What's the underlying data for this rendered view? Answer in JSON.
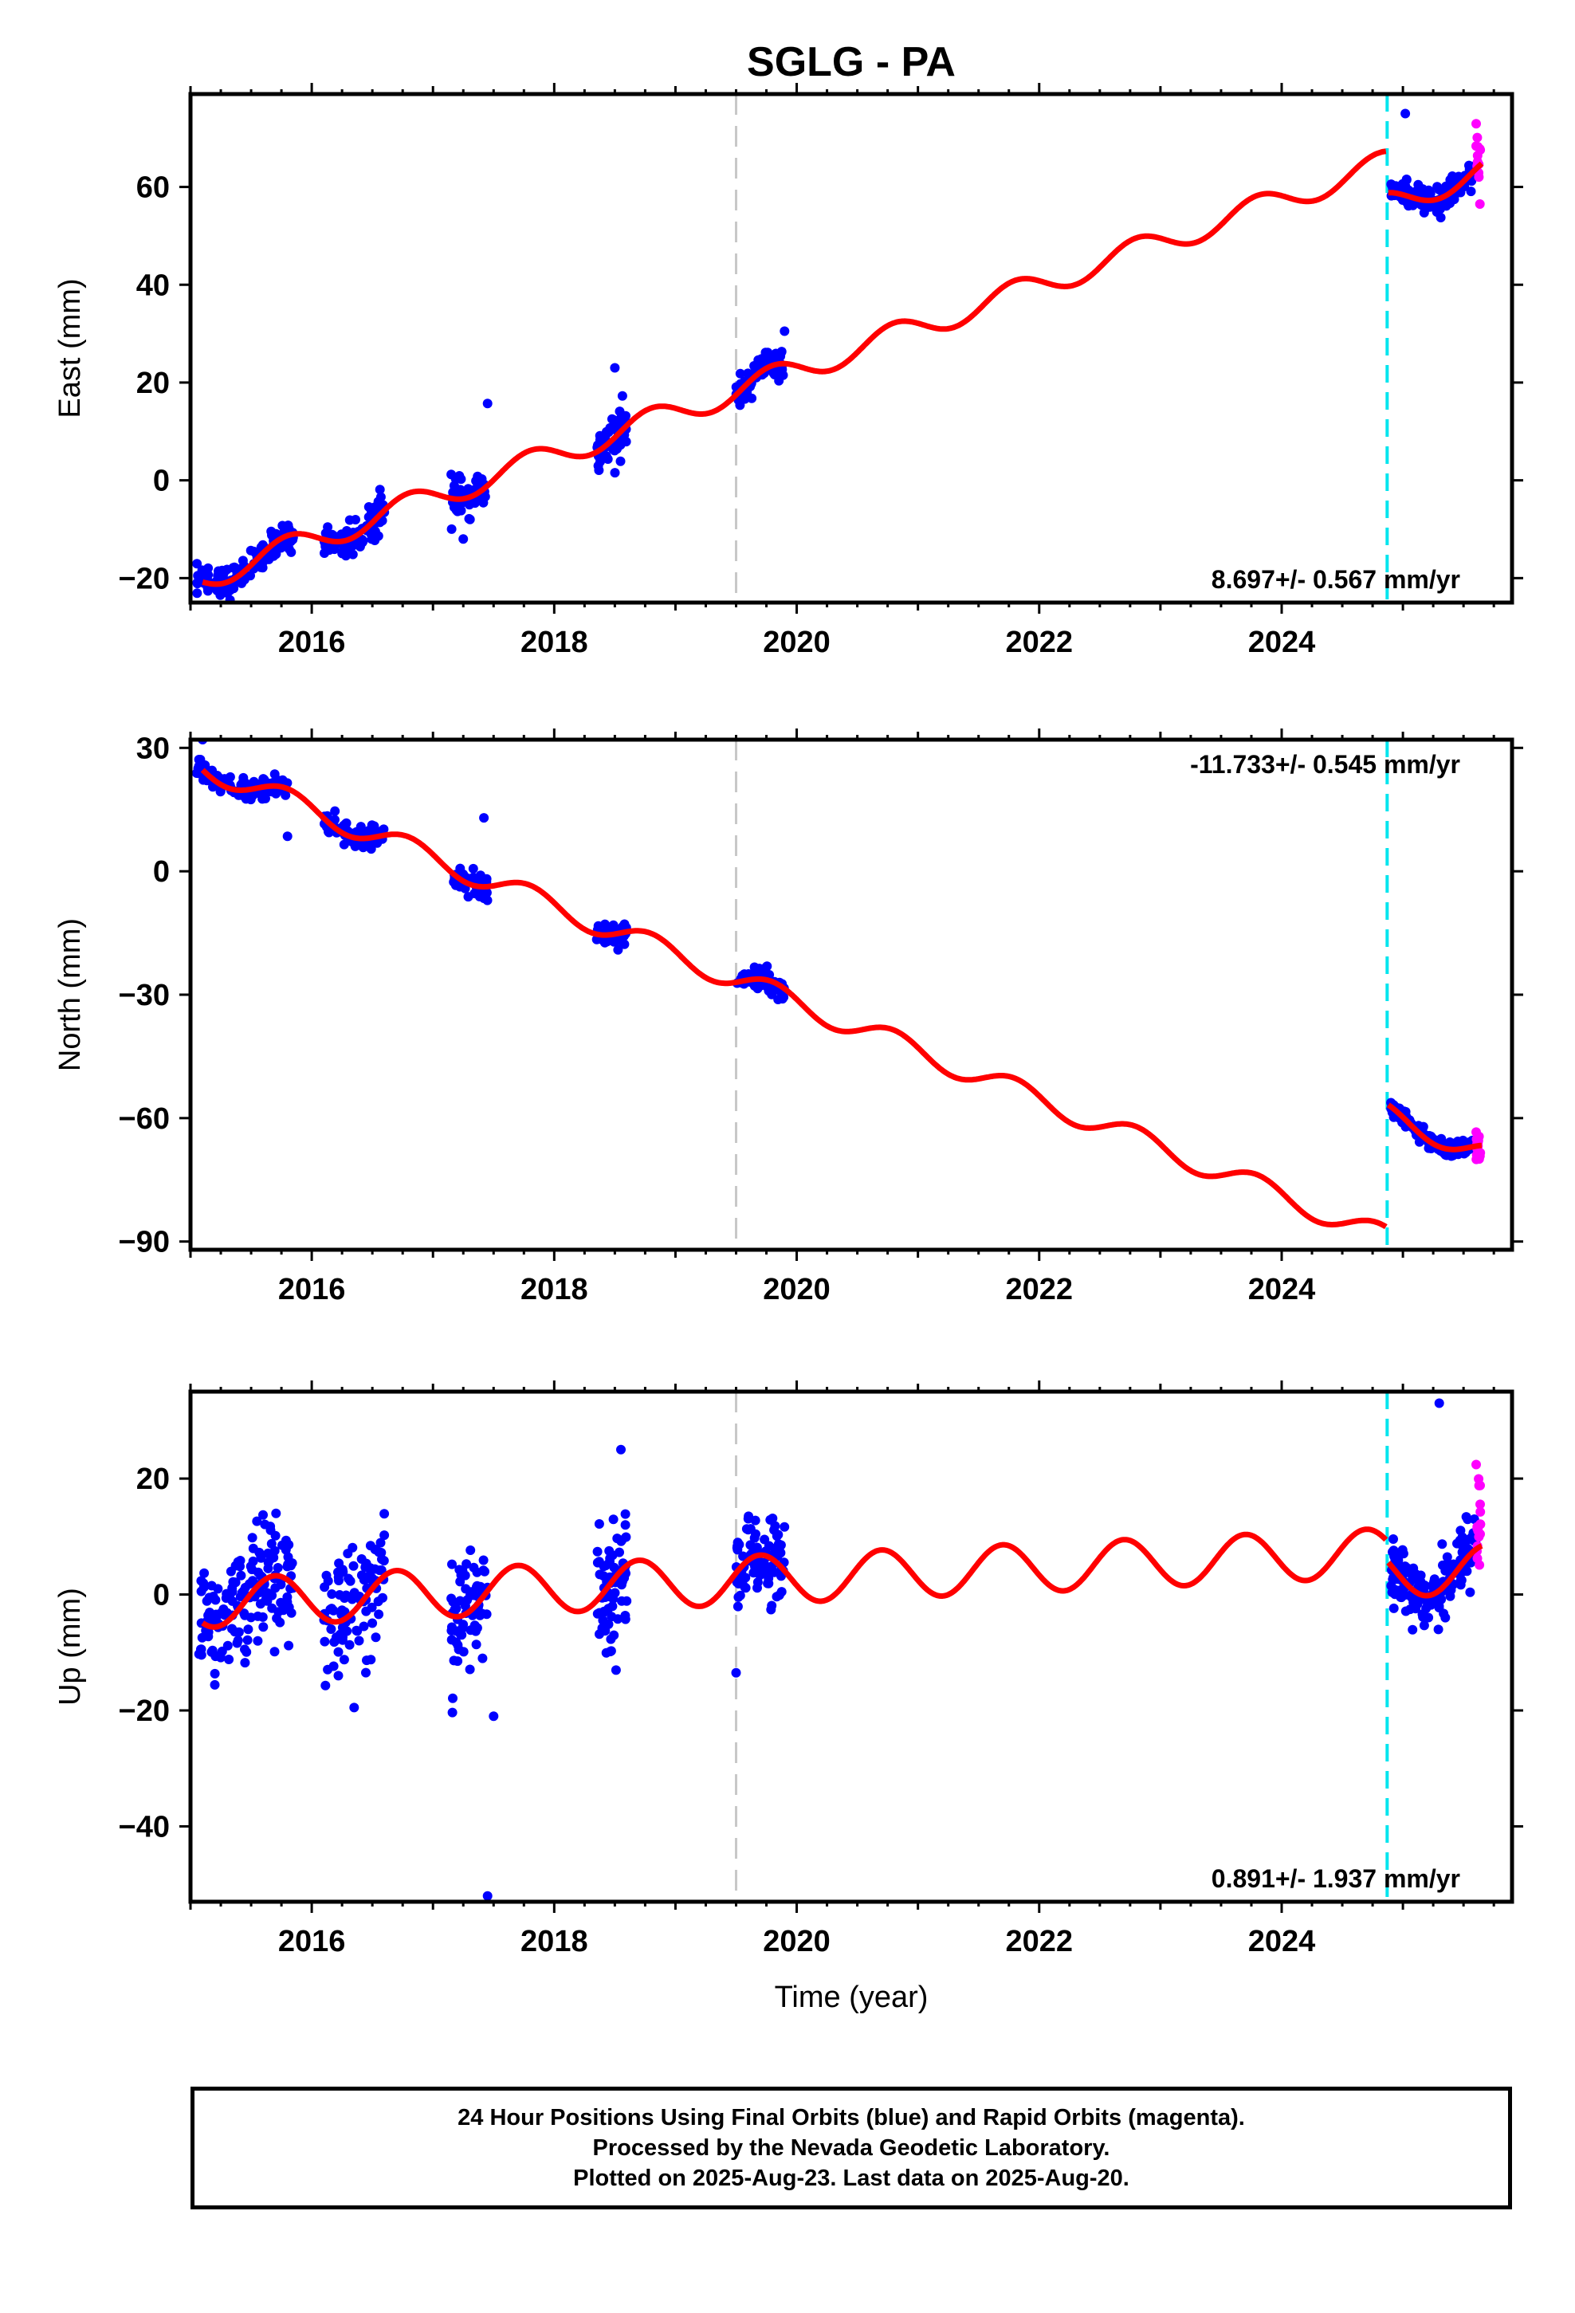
{
  "title": "SGLG - PA",
  "xlabel": "Time (year)",
  "colors": {
    "final": "#0000ff",
    "rapid": "#ff00ff",
    "model": "#ff0000",
    "gray_line": "#c8c8c8",
    "cyan_line": "#00e5ee"
  },
  "chart_data": [
    {
      "type": "scatter",
      "panel": "east",
      "ylabel": "East (mm)",
      "xlim": [
        2015.0,
        2025.9
      ],
      "ylim": [
        -25,
        79
      ],
      "x_ticks": [
        2016,
        2018,
        2020,
        2022,
        2024
      ],
      "y_ticks": [
        -20,
        0,
        20,
        40,
        60
      ],
      "y_tick_labels": [
        "−20",
        "0",
        "20",
        "40",
        "60"
      ],
      "rate_label": "8.697+/- 0.567 mm/yr",
      "rate_label_position": "bottom-right",
      "vertical_lines": [
        {
          "x": 2019.5,
          "style": "gray-dashed"
        },
        {
          "x": 2024.87,
          "style": "cyan-dashed"
        }
      ],
      "model": {
        "x0": 2015.1,
        "y0": -20,
        "rate": 8.697,
        "amplitude": 2.6,
        "phase_year": 2015.55,
        "segments": [
          {
            "from": 2015.1,
            "to": 2024.86,
            "offset": 0
          },
          {
            "from": 2024.88,
            "to": 2025.65,
            "offset": -8.5
          }
        ]
      },
      "series": [
        {
          "name": "Final Orbits",
          "color": "blue",
          "clusters": [
            {
              "from": 2015.05,
              "to": 2015.85,
              "spread": 1.6,
              "n": 130
            },
            {
              "from": 2016.1,
              "to": 2016.6,
              "spread": 1.8,
              "n": 90
            },
            {
              "from": 2017.15,
              "to": 2017.45,
              "spread": 1.8,
              "n": 60
            },
            {
              "from": 2018.35,
              "to": 2018.6,
              "spread": 2.5,
              "n": 60
            },
            {
              "from": 2019.5,
              "to": 2019.9,
              "spread": 1.6,
              "n": 70
            },
            {
              "from": 2024.9,
              "to": 2025.6,
              "spread": 1.4,
              "n": 140
            }
          ],
          "outliers": [
            [
              2017.45,
              15.7
            ],
            [
              2017.25,
              -12
            ],
            [
              2018.5,
              23
            ],
            [
              2019.9,
              30.5
            ],
            [
              2025.02,
              75
            ],
            [
              2025.0,
              60
            ]
          ]
        },
        {
          "name": "Rapid Orbits",
          "color": "magenta",
          "clusters": [
            {
              "from": 2025.6,
              "to": 2025.64,
              "spread": 3.0,
              "n": 14
            }
          ]
        }
      ]
    },
    {
      "type": "scatter",
      "panel": "north",
      "ylabel": "North (mm)",
      "xlim": [
        2015.0,
        2025.9
      ],
      "ylim": [
        -92,
        32
      ],
      "x_ticks": [
        2016,
        2018,
        2020,
        2022,
        2024
      ],
      "y_ticks": [
        -90,
        -60,
        -30,
        0,
        30
      ],
      "y_tick_labels": [
        "−90",
        "−60",
        "−30",
        "0",
        "30"
      ],
      "rate_label": "-11.733+/- 0.545 mm/yr",
      "rate_label_position": "top-right",
      "vertical_lines": [
        {
          "x": 2019.5,
          "style": "gray-dashed"
        },
        {
          "x": 2024.87,
          "style": "cyan-dashed"
        }
      ],
      "model": {
        "x0": 2015.1,
        "y0": 25.5,
        "rate": -11.733,
        "amplitude": 2.8,
        "phase_year": 2015.55,
        "segments": [
          {
            "from": 2015.1,
            "to": 2024.86,
            "offset": 0
          },
          {
            "from": 2024.88,
            "to": 2025.65,
            "offset": 30.0
          }
        ]
      },
      "series": [
        {
          "name": "Final Orbits",
          "color": "blue",
          "clusters": [
            {
              "from": 2015.05,
              "to": 2015.8,
              "spread": 1.2,
              "n": 130
            },
            {
              "from": 2016.1,
              "to": 2016.6,
              "spread": 1.3,
              "n": 90
            },
            {
              "from": 2017.15,
              "to": 2017.45,
              "spread": 1.6,
              "n": 60
            },
            {
              "from": 2018.35,
              "to": 2018.6,
              "spread": 1.4,
              "n": 60
            },
            {
              "from": 2019.5,
              "to": 2019.9,
              "spread": 1.4,
              "n": 70
            },
            {
              "from": 2024.9,
              "to": 2025.6,
              "spread": 1.1,
              "n": 140
            }
          ],
          "outliers": [
            [
              2015.1,
              32
            ],
            [
              2015.8,
              8.5
            ],
            [
              2017.42,
              13
            ]
          ]
        },
        {
          "name": "Rapid Orbits",
          "color": "magenta",
          "clusters": [
            {
              "from": 2025.6,
              "to": 2025.64,
              "spread": 1.6,
              "n": 14
            }
          ]
        }
      ]
    },
    {
      "type": "scatter",
      "panel": "up",
      "ylabel": "Up (mm)",
      "xlim": [
        2015.0,
        2025.9
      ],
      "ylim": [
        -53,
        35
      ],
      "x_ticks": [
        2016,
        2018,
        2020,
        2022,
        2024
      ],
      "y_ticks": [
        -40,
        -20,
        0,
        20
      ],
      "y_tick_labels": [
        "−40",
        "−20",
        "0",
        "20"
      ],
      "rate_label": "0.891+/- 1.937 mm/yr",
      "rate_label_position": "bottom-right",
      "vertical_lines": [
        {
          "x": 2019.5,
          "style": "gray-dashed"
        },
        {
          "x": 2024.87,
          "style": "cyan-dashed"
        }
      ],
      "model": {
        "x0": 2015.1,
        "y0": -1.5,
        "rate": 0.891,
        "amplitude": 4.2,
        "phase_year": 2015.45,
        "segments": [
          {
            "from": 2015.1,
            "to": 2024.86,
            "offset": 0
          },
          {
            "from": 2024.88,
            "to": 2025.65,
            "offset": -3.5
          }
        ]
      },
      "series": [
        {
          "name": "Final Orbits",
          "color": "blue",
          "clusters": [
            {
              "from": 2015.05,
              "to": 2015.85,
              "spread": 5.0,
              "n": 160
            },
            {
              "from": 2016.1,
              "to": 2016.6,
              "spread": 5.0,
              "n": 100
            },
            {
              "from": 2017.15,
              "to": 2017.45,
              "spread": 5.0,
              "n": 70
            },
            {
              "from": 2018.35,
              "to": 2018.6,
              "spread": 5.5,
              "n": 70
            },
            {
              "from": 2019.5,
              "to": 2019.9,
              "spread": 3.8,
              "n": 90
            },
            {
              "from": 2024.9,
              "to": 2025.6,
              "spread": 2.8,
              "n": 180
            }
          ],
          "outliers": [
            [
              2017.45,
              -52
            ],
            [
              2018.55,
              25
            ],
            [
              2025.3,
              33
            ],
            [
              2017.5,
              -21
            ],
            [
              2016.35,
              -19.5
            ],
            [
              2019.5,
              -13.5
            ]
          ]
        },
        {
          "name": "Rapid Orbits",
          "color": "magenta",
          "clusters": [
            {
              "from": 2025.6,
              "to": 2025.64,
              "spread": 4.5,
              "n": 18,
              "center": 14
            }
          ]
        }
      ]
    }
  ],
  "footer": {
    "line1": "24 Hour Positions Using Final Orbits (blue) and Rapid Orbits (magenta).",
    "line2": "Processed by the Nevada Geodetic Laboratory.",
    "line3": "Plotted on 2025-Aug-23. Last data on 2025-Aug-20."
  }
}
